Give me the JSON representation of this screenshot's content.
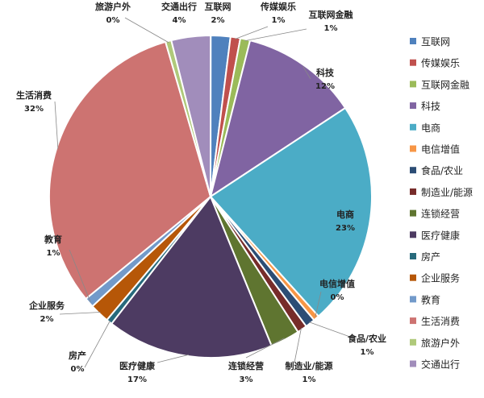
{
  "chart_data": {
    "type": "pie",
    "title": "",
    "legend_position": "right",
    "slices": [
      {
        "name": "互联网",
        "value": 2,
        "label": "2%",
        "color": "#4F81BD"
      },
      {
        "name": "传媒娱乐",
        "value": 1,
        "label": "1%",
        "color": "#C0504D"
      },
      {
        "name": "互联网金融",
        "value": 1,
        "label": "1%",
        "color": "#9BBB59"
      },
      {
        "name": "科技",
        "value": 12,
        "label": "12%",
        "color": "#8064A2"
      },
      {
        "name": "电商",
        "value": 23,
        "label": "23%",
        "color": "#4BACC6"
      },
      {
        "name": "电信增值",
        "value": 0,
        "label": "0%",
        "color": "#F79646"
      },
      {
        "name": "食品/农业",
        "value": 1,
        "label": "1%",
        "color": "#2C4D75"
      },
      {
        "name": "制造业/能源",
        "value": 1,
        "label": "1%",
        "color": "#772C2A"
      },
      {
        "name": "连锁经营",
        "value": 3,
        "label": "3%",
        "color": "#5F7530"
      },
      {
        "name": "医疗健康",
        "value": 17,
        "label": "17%",
        "color": "#4D3B62"
      },
      {
        "name": "房产",
        "value": 0,
        "label": "0%",
        "color": "#276A7C"
      },
      {
        "name": "企业服务",
        "value": 2,
        "label": "2%",
        "color": "#B65708"
      },
      {
        "name": "教育",
        "value": 1,
        "label": "1%",
        "color": "#729ACA"
      },
      {
        "name": "生活消费",
        "value": 32,
        "label": "32%",
        "color": "#CD7371"
      },
      {
        "name": "旅游户外",
        "value": 0,
        "label": "0%",
        "color": "#AFC97A"
      },
      {
        "name": "交通出行",
        "value": 4,
        "label": "4%",
        "color": "#A18DBB"
      }
    ]
  }
}
